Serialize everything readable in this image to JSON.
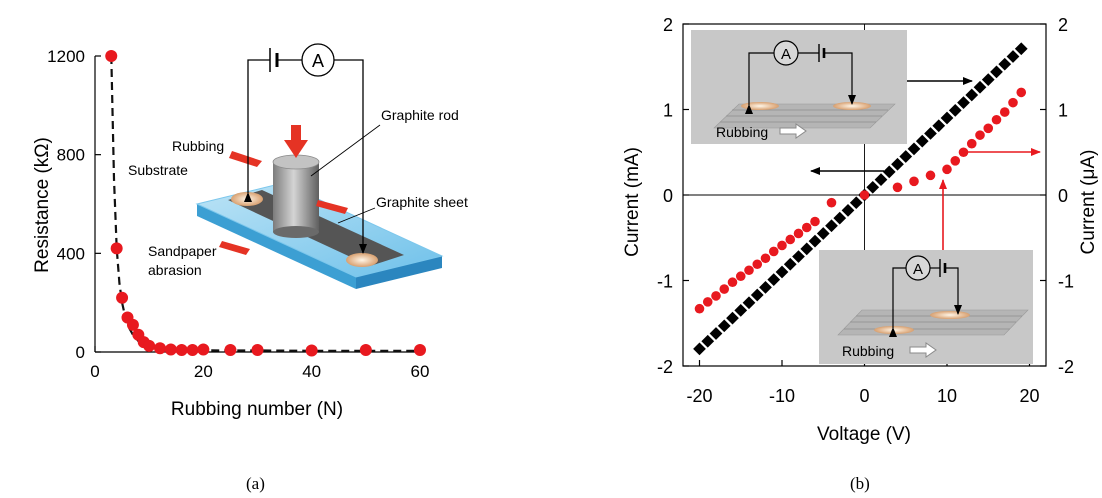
{
  "chart_data": [
    {
      "type": "scatter",
      "panel_label": "(a)",
      "xlabel": "Rubbing number (N)",
      "ylabel": "Resistance (kΩ)",
      "xlim": [
        0,
        60
      ],
      "ylim": [
        0,
        1200
      ],
      "xticks": [
        "0",
        "20",
        "40",
        "60"
      ],
      "xtick_values": [
        0,
        20,
        40,
        60
      ],
      "yticks": [
        "0",
        "400",
        "800",
        "1200"
      ],
      "ytick_values": [
        0,
        400,
        800,
        1200
      ],
      "series": [
        {
          "color": "#e8191f",
          "x": [
            3,
            4,
            5,
            6,
            7,
            8,
            9,
            10,
            12,
            14,
            16,
            18,
            20,
            25,
            30,
            40,
            50,
            60
          ],
          "y": [
            1200,
            420,
            220,
            140,
            110,
            70,
            40,
            25,
            15,
            10,
            8,
            8,
            10,
            8,
            8,
            6,
            8,
            8
          ]
        }
      ],
      "fit_line": {
        "style": "dashed",
        "x": [
          3,
          3.5,
          4,
          4.5,
          5,
          5.5,
          6,
          7,
          8,
          9,
          10,
          12,
          14,
          16,
          20,
          25,
          30,
          40,
          50,
          60
        ],
        "y": [
          1200,
          700,
          420,
          280,
          200,
          150,
          110,
          70,
          45,
          30,
          22,
          14,
          10,
          8,
          7,
          6,
          6,
          5,
          5,
          5
        ]
      },
      "inset": {
        "labels": {
          "graphite_rod": "Graphite rod",
          "rubbing": "Rubbing",
          "substrate": "Substrate",
          "graphite_sheet": "Graphite sheet",
          "sandpaper_line1": "Sandpaper",
          "sandpaper_line2": "abrasion",
          "ammeter": "A"
        }
      },
      "grid": false
    },
    {
      "type": "scatter",
      "panel_label": "(b)",
      "xlabel": "Voltage (V)",
      "ylabel": "Current (mA)",
      "ylabel_right": "Current (μA)",
      "xlim": [
        -22,
        22
      ],
      "ylim": [
        -2,
        2
      ],
      "xticks": [
        "-20",
        "-10",
        "0",
        "10",
        "20"
      ],
      "xtick_values": [
        -20,
        -10,
        0,
        10,
        20
      ],
      "yticks": [
        "-2",
        "-1",
        "0",
        "1",
        "2"
      ],
      "ytick_values": [
        -2,
        -1,
        0,
        1,
        2
      ],
      "yticks_right": [
        "-2",
        "-1",
        "0",
        "1",
        "2"
      ],
      "series": [
        {
          "axis": "left",
          "color": "#000000",
          "marker": "square",
          "x": [
            -20,
            -19,
            -18,
            -17,
            -16,
            -15,
            -14,
            -13,
            -12,
            -11,
            -10,
            -9,
            -8,
            -7,
            -6,
            -5,
            -4,
            -3,
            -2,
            -1,
            0,
            1,
            2,
            3,
            4,
            5,
            6,
            7,
            8,
            9,
            10,
            11,
            12,
            13,
            14,
            15,
            16,
            17,
            18,
            19
          ],
          "y": [
            -1.8,
            -1.71,
            -1.62,
            -1.53,
            -1.44,
            -1.35,
            -1.26,
            -1.17,
            -1.08,
            -0.99,
            -0.9,
            -0.81,
            -0.72,
            -0.63,
            -0.54,
            -0.45,
            -0.36,
            -0.27,
            -0.18,
            -0.09,
            0,
            0.09,
            0.18,
            0.27,
            0.36,
            0.45,
            0.54,
            0.63,
            0.72,
            0.81,
            0.9,
            0.99,
            1.08,
            1.17,
            1.26,
            1.35,
            1.44,
            1.53,
            1.62,
            1.71
          ]
        },
        {
          "axis": "right",
          "color": "#e8191f",
          "marker": "circle",
          "x": [
            -20,
            -19,
            -18,
            -17,
            -16,
            -15,
            -14,
            -13,
            -12,
            -11,
            -10,
            -9,
            -8,
            -7,
            -6,
            -4,
            0,
            4,
            6,
            8,
            10,
            11,
            12,
            13,
            14,
            15,
            16,
            17,
            18,
            19
          ],
          "y": [
            -1.33,
            -1.25,
            -1.18,
            -1.1,
            -1.02,
            -0.95,
            -0.88,
            -0.81,
            -0.74,
            -0.66,
            -0.59,
            -0.52,
            -0.45,
            -0.38,
            -0.31,
            -0.09,
            0,
            0.09,
            0.16,
            0.23,
            0.3,
            0.4,
            0.5,
            0.6,
            0.7,
            0.78,
            0.88,
            0.97,
            1.08,
            1.2
          ]
        }
      ],
      "insets": {
        "top_rubbing": "Rubbing",
        "bottom_rubbing": "Rubbing",
        "ammeter": "A"
      },
      "grid": false
    }
  ]
}
